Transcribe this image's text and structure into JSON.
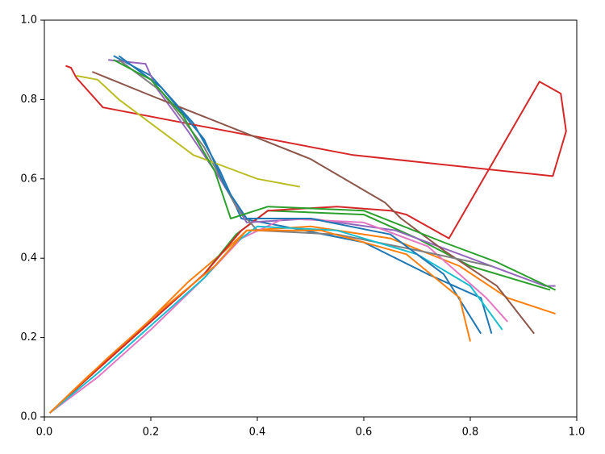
{
  "chart_data": {
    "type": "line",
    "xlim": [
      0,
      1
    ],
    "ylim": [
      0,
      1
    ],
    "xticks": [
      {
        "value": 0,
        "label": "0.0"
      },
      {
        "value": 0.2,
        "label": "0.2"
      },
      {
        "value": 0.4,
        "label": "0.4"
      },
      {
        "value": 0.6,
        "label": "0.6"
      },
      {
        "value": 0.8,
        "label": "0.8"
      },
      {
        "value": 1,
        "label": "1.0"
      }
    ],
    "yticks": [
      {
        "value": 0,
        "label": "0.0"
      },
      {
        "value": 0.2,
        "label": "0.2"
      },
      {
        "value": 0.4,
        "label": "0.4"
      },
      {
        "value": 0.6,
        "label": "0.6"
      },
      {
        "value": 0.8,
        "label": "0.8"
      },
      {
        "value": 1,
        "label": "1.0"
      }
    ],
    "series": [
      {
        "color": "#1f77b4",
        "x": [
          0.13,
          0.2,
          0.28,
          0.33,
          0.37,
          0.45,
          0.6,
          0.72,
          0.82,
          0.84
        ],
        "values": [
          0.91,
          0.86,
          0.74,
          0.62,
          0.5,
          0.48,
          0.44,
          0.36,
          0.3,
          0.21
        ]
      },
      {
        "color": "#ff7f0e",
        "x": [
          0.01,
          0.08,
          0.18,
          0.27,
          0.34,
          0.38,
          0.5,
          0.65,
          0.78,
          0.87,
          0.96
        ],
        "values": [
          0.01,
          0.1,
          0.22,
          0.34,
          0.42,
          0.47,
          0.48,
          0.45,
          0.38,
          0.3,
          0.26
        ]
      },
      {
        "color": "#2ca02c",
        "x": [
          0.01,
          0.1,
          0.2,
          0.3,
          0.36,
          0.42,
          0.6,
          0.7,
          0.8,
          0.95
        ],
        "values": [
          0.01,
          0.12,
          0.24,
          0.36,
          0.46,
          0.52,
          0.51,
          0.45,
          0.38,
          0.32
        ]
      },
      {
        "color": "#d62728",
        "x": [
          0.01,
          0.1,
          0.2,
          0.3,
          0.37,
          0.42,
          0.55,
          0.65,
          0.68,
          0.76,
          0.93,
          0.97,
          0.98,
          0.955,
          0.58,
          0.11,
          0.06,
          0.05,
          0.04
        ],
        "values": [
          0.01,
          0.12,
          0.24,
          0.36,
          0.47,
          0.52,
          0.53,
          0.52,
          0.51,
          0.45,
          0.845,
          0.815,
          0.72,
          0.607,
          0.66,
          0.78,
          0.855,
          0.88,
          0.885
        ]
      },
      {
        "color": "#9467bd",
        "x": [
          0.12,
          0.19,
          0.21,
          0.27,
          0.33,
          0.38,
          0.5,
          0.66,
          0.8,
          0.88,
          0.94,
          0.96
        ],
        "values": [
          0.9,
          0.89,
          0.83,
          0.72,
          0.6,
          0.49,
          0.5,
          0.47,
          0.4,
          0.36,
          0.33,
          0.33
        ]
      },
      {
        "color": "#8c564b",
        "x": [
          0.09,
          0.2,
          0.35,
          0.5,
          0.64,
          0.67,
          0.75,
          0.85,
          0.92
        ],
        "values": [
          0.87,
          0.81,
          0.73,
          0.65,
          0.54,
          0.5,
          0.42,
          0.33,
          0.21
        ]
      },
      {
        "color": "#e377c2",
        "x": [
          0.01,
          0.1,
          0.2,
          0.3,
          0.37,
          0.45,
          0.6,
          0.72,
          0.83,
          0.87
        ],
        "values": [
          0.01,
          0.1,
          0.22,
          0.35,
          0.45,
          0.5,
          0.49,
          0.43,
          0.3,
          0.24
        ]
      },
      {
        "color": "#7f7f7f",
        "x": [
          0.14,
          0.22,
          0.3,
          0.36,
          0.4,
          0.55,
          0.7,
          0.84
        ],
        "values": [
          0.9,
          0.82,
          0.68,
          0.53,
          0.47,
          0.46,
          0.42,
          0.38
        ]
      },
      {
        "color": "#bcbd22",
        "x": [
          0.06,
          0.1,
          0.14,
          0.22,
          0.28,
          0.34,
          0.4,
          0.48
        ],
        "values": [
          0.86,
          0.85,
          0.8,
          0.72,
          0.66,
          0.63,
          0.6,
          0.58
        ]
      },
      {
        "color": "#17becf",
        "x": [
          0.01,
          0.1,
          0.2,
          0.3,
          0.36,
          0.4,
          0.55,
          0.7,
          0.8,
          0.86
        ],
        "values": [
          0.01,
          0.11,
          0.23,
          0.35,
          0.44,
          0.48,
          0.47,
          0.41,
          0.33,
          0.22
        ]
      },
      {
        "color": "#1f77b4",
        "x": [
          0.14,
          0.22,
          0.3,
          0.34,
          0.38,
          0.5,
          0.65,
          0.75,
          0.82
        ],
        "values": [
          0.91,
          0.83,
          0.7,
          0.58,
          0.5,
          0.5,
          0.46,
          0.36,
          0.21
        ]
      },
      {
        "color": "#ff7f0e",
        "x": [
          0.01,
          0.12,
          0.22,
          0.32,
          0.38,
          0.52,
          0.68,
          0.78,
          0.8
        ],
        "values": [
          0.01,
          0.15,
          0.27,
          0.38,
          0.47,
          0.47,
          0.41,
          0.3,
          0.19
        ]
      },
      {
        "color": "#2ca02c",
        "x": [
          0.13,
          0.2,
          0.26,
          0.32,
          0.35,
          0.42,
          0.6,
          0.75,
          0.85,
          0.96
        ],
        "values": [
          0.9,
          0.85,
          0.76,
          0.62,
          0.5,
          0.53,
          0.52,
          0.44,
          0.39,
          0.32
        ]
      }
    ]
  }
}
